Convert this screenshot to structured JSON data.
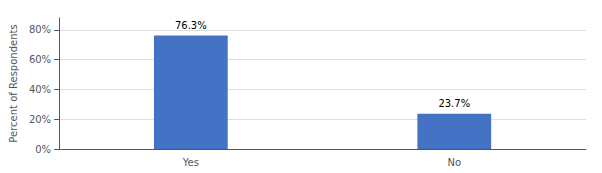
{
  "chart_data": {
    "type": "bar",
    "categories": [
      "Yes",
      "No"
    ],
    "values": [
      76.3,
      23.7
    ],
    "value_labels": [
      "76.3%",
      "23.7%"
    ],
    "data_labels": true,
    "color": "#4472C4",
    "ylabel": "Percent of Respondents",
    "ylim": [
      0,
      88
    ],
    "yticks": [
      {
        "value": 0,
        "label": "0%"
      },
      {
        "value": 20,
        "label": "20%"
      },
      {
        "value": 40,
        "label": "40%"
      },
      {
        "value": 60,
        "label": "60%"
      },
      {
        "value": 80,
        "label": "80%"
      }
    ],
    "grid": true
  }
}
